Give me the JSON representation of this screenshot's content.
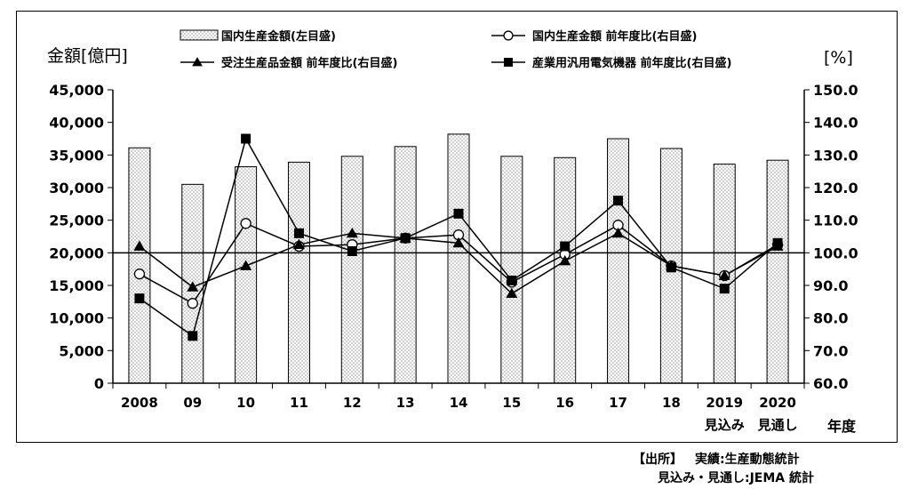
{
  "chart_data": {
    "type": "bar+line",
    "left_axis_label": "金額[億円]",
    "right_axis_label": "[%]",
    "xlabel": "年度",
    "categories": [
      "2008",
      "09",
      "10",
      "11",
      "12",
      "13",
      "14",
      "15",
      "16",
      "17",
      "18",
      "2019",
      "2020"
    ],
    "category_sublabels": [
      "",
      "",
      "",
      "",
      "",
      "",
      "",
      "",
      "",
      "",
      "",
      "見込み",
      "見通し"
    ],
    "y_left": {
      "min": 0,
      "max": 45000,
      "step": 5000,
      "ticks": [
        "0",
        "5,000",
        "10,000",
        "15,000",
        "20,000",
        "25,000",
        "30,000",
        "35,000",
        "40,000",
        "45,000"
      ]
    },
    "y_right": {
      "min": 60,
      "max": 150,
      "step": 10,
      "ticks": [
        "60.0",
        "70.0",
        "80.0",
        "90.0",
        "100.0",
        "110.0",
        "120.0",
        "130.0",
        "140.0",
        "150.0"
      ]
    },
    "reference_line_right": 100,
    "grid": false,
    "legend_position": "top",
    "bars": {
      "name": "国内生産金額(左目盛)",
      "axis": "left",
      "values": [
        36100,
        30500,
        33200,
        33900,
        34800,
        36300,
        38200,
        34800,
        34600,
        37500,
        36000,
        33600,
        34200
      ]
    },
    "series": [
      {
        "name": "国内生産金額  前年度比(右目盛)",
        "axis": "right",
        "marker": "circle-open",
        "values": [
          93.5,
          84.5,
          109.0,
          102.0,
          102.5,
          104.5,
          105.5,
          91.0,
          99.5,
          108.5,
          96.0,
          93.0,
          102.5
        ]
      },
      {
        "name": "受注生産品金額  前年度比(右目盛)",
        "axis": "right",
        "marker": "triangle",
        "values": [
          102.0,
          89.5,
          96.0,
          102.5,
          106.0,
          104.5,
          103.0,
          87.5,
          97.5,
          106.0,
          96.0,
          93.0,
          102.0
        ]
      },
      {
        "name": "産業用汎用電気機器  前年度比(右目盛)",
        "axis": "right",
        "marker": "square",
        "values": [
          86.0,
          74.5,
          135.0,
          106.0,
          100.5,
          104.5,
          112.0,
          91.5,
          102.0,
          116.0,
          95.5,
          89.0,
          103.0
        ]
      }
    ]
  },
  "source": {
    "line1_label": "【出所】",
    "line1_text": "実績:生産動態統計",
    "line2_text": "見込み・見通し:JEMA 統計"
  },
  "colors": {
    "bar_fill": "#ffffff",
    "bar_dots": "#8a8a8a",
    "line": "#000000"
  }
}
